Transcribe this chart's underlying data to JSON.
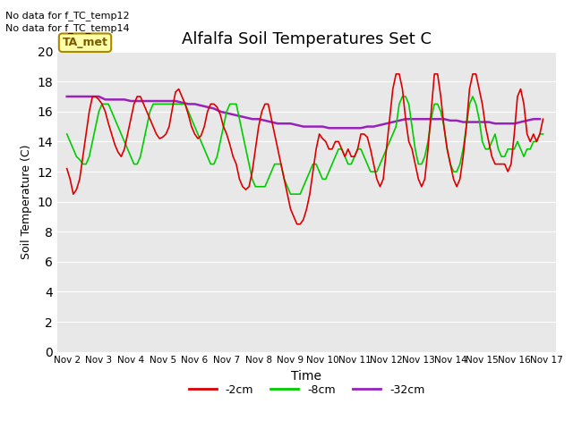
{
  "title": "Alfalfa Soil Temperatures Set C",
  "xlabel": "Time",
  "ylabel": "Soil Temperature (C)",
  "annotation_lines": [
    "No data for f_TC_temp12",
    "No data for f_TC_temp14"
  ],
  "legend_box_label": "TA_met",
  "bg_color": "#e8e8e8",
  "ylim": [
    0,
    20
  ],
  "yticks": [
    0,
    2,
    4,
    6,
    8,
    10,
    12,
    14,
    16,
    18,
    20
  ],
  "x_labels": [
    "Nov 2",
    "Nov 3",
    "Nov 4",
    "Nov 5",
    "Nov 6",
    "Nov 7",
    "Nov 8",
    "Nov 9",
    "Nov 10",
    "Nov 11",
    "Nov 12",
    "Nov 13",
    "Nov 14",
    "Nov 15",
    "Nov 16",
    "Nov 17"
  ],
  "line_colors": {
    "2cm": "#dd0000",
    "8cm": "#00cc00",
    "32cm": "#9922bb"
  },
  "x_2cm": [
    0.0,
    0.1,
    0.2,
    0.3,
    0.4,
    0.5,
    0.6,
    0.7,
    0.8,
    0.9,
    1.0,
    1.1,
    1.2,
    1.3,
    1.4,
    1.5,
    1.6,
    1.7,
    1.8,
    1.9,
    2.0,
    2.1,
    2.2,
    2.3,
    2.4,
    2.5,
    2.6,
    2.7,
    2.8,
    2.9,
    3.0,
    3.1,
    3.2,
    3.3,
    3.4,
    3.5,
    3.6,
    3.7,
    3.8,
    3.9,
    4.0,
    4.1,
    4.2,
    4.3,
    4.4,
    4.5,
    4.6,
    4.7,
    4.8,
    4.9,
    5.0,
    5.1,
    5.2,
    5.3,
    5.4,
    5.5,
    5.6,
    5.7,
    5.8,
    5.9,
    6.0,
    6.1,
    6.2,
    6.3,
    6.4,
    6.5,
    6.6,
    6.7,
    6.8,
    6.9,
    7.0,
    7.1,
    7.2,
    7.3,
    7.4,
    7.5,
    7.6,
    7.7,
    7.8,
    7.9,
    8.0,
    8.1,
    8.2,
    8.3,
    8.4,
    8.5,
    8.6,
    8.7,
    8.8,
    8.9,
    9.0,
    9.1,
    9.2,
    9.3,
    9.4,
    9.5,
    9.6,
    9.7,
    9.8,
    9.9,
    10.0,
    10.1,
    10.2,
    10.3,
    10.4,
    10.5,
    10.6,
    10.7,
    10.8,
    10.9,
    11.0,
    11.1,
    11.2,
    11.3,
    11.4,
    11.5,
    11.6,
    11.7,
    11.8,
    11.9,
    12.0,
    12.1,
    12.2,
    12.3,
    12.4,
    12.5,
    12.6,
    12.7,
    12.8,
    12.9,
    13.0,
    13.1,
    13.2,
    13.3,
    13.4,
    13.5,
    13.6,
    13.7,
    13.8,
    13.9,
    14.0,
    14.1,
    14.2,
    14.3,
    14.4,
    14.5,
    14.6,
    14.7,
    14.8,
    14.9
  ],
  "y_2cm": [
    12.2,
    11.5,
    10.5,
    10.8,
    11.5,
    13.0,
    14.5,
    16.0,
    17.0,
    17.0,
    16.8,
    16.5,
    16.0,
    15.2,
    14.5,
    13.8,
    13.3,
    13.0,
    13.5,
    14.5,
    15.5,
    16.5,
    17.0,
    17.0,
    16.5,
    16.0,
    15.5,
    15.0,
    14.5,
    14.2,
    14.3,
    14.5,
    15.0,
    16.2,
    17.3,
    17.5,
    17.0,
    16.5,
    15.8,
    15.0,
    14.5,
    14.2,
    14.4,
    15.0,
    16.0,
    16.5,
    16.5,
    16.3,
    15.8,
    15.0,
    14.5,
    13.8,
    13.0,
    12.5,
    11.5,
    11.0,
    10.8,
    11.0,
    12.0,
    13.5,
    15.0,
    16.0,
    16.5,
    16.5,
    15.5,
    14.5,
    13.5,
    12.5,
    11.5,
    10.5,
    9.5,
    9.0,
    8.5,
    8.5,
    8.8,
    9.5,
    10.5,
    12.0,
    13.5,
    14.5,
    14.2,
    14.0,
    13.5,
    13.5,
    14.0,
    14.0,
    13.5,
    13.0,
    13.5,
    13.0,
    13.0,
    13.5,
    14.5,
    14.5,
    14.3,
    13.5,
    12.5,
    11.5,
    11.0,
    11.5,
    13.5,
    15.5,
    17.5,
    18.5,
    18.5,
    17.5,
    15.5,
    14.0,
    13.5,
    12.5,
    11.5,
    11.0,
    11.5,
    13.5,
    16.0,
    18.5,
    18.5,
    17.0,
    15.0,
    13.5,
    12.5,
    11.5,
    11.0,
    11.5,
    13.0,
    15.0,
    17.5,
    18.5,
    18.5,
    17.5,
    16.5,
    15.0,
    14.0,
    13.0,
    12.5,
    12.5,
    12.5,
    12.5,
    12.0,
    12.5,
    14.5,
    17.0,
    17.5,
    16.5,
    14.5,
    14.0,
    14.5,
    14.0,
    14.5,
    15.5
  ],
  "y_8cm": [
    14.5,
    14.0,
    13.5,
    13.0,
    12.8,
    12.5,
    12.5,
    13.0,
    14.0,
    15.0,
    16.0,
    16.5,
    16.5,
    16.5,
    16.0,
    15.5,
    15.0,
    14.5,
    14.0,
    13.5,
    13.0,
    12.5,
    12.5,
    13.0,
    14.0,
    15.0,
    16.0,
    16.5,
    16.5,
    16.5,
    16.5,
    16.5,
    16.5,
    16.5,
    16.5,
    16.5,
    16.5,
    16.5,
    16.0,
    15.5,
    15.0,
    14.5,
    14.0,
    13.5,
    13.0,
    12.5,
    12.5,
    13.0,
    14.0,
    15.0,
    16.0,
    16.5,
    16.5,
    16.5,
    15.5,
    14.5,
    13.5,
    12.5,
    11.5,
    11.0,
    11.0,
    11.0,
    11.0,
    11.5,
    12.0,
    12.5,
    12.5,
    12.5,
    11.5,
    11.0,
    10.5,
    10.5,
    10.5,
    10.5,
    11.0,
    11.5,
    12.0,
    12.5,
    12.5,
    12.0,
    11.5,
    11.5,
    12.0,
    12.5,
    13.0,
    13.5,
    13.5,
    13.0,
    12.5,
    12.5,
    13.0,
    13.5,
    13.5,
    13.0,
    12.5,
    12.0,
    12.0,
    12.0,
    12.5,
    13.0,
    13.5,
    14.0,
    14.5,
    15.0,
    16.5,
    17.0,
    17.0,
    16.5,
    15.0,
    13.5,
    12.5,
    12.5,
    13.0,
    14.0,
    15.5,
    16.5,
    16.5,
    16.0,
    15.0,
    13.5,
    12.5,
    12.0,
    12.0,
    12.5,
    13.5,
    15.0,
    16.5,
    17.0,
    16.5,
    15.5,
    14.0,
    13.5,
    13.5,
    14.0,
    14.5,
    13.5,
    13.0,
    13.0,
    13.5,
    13.5,
    13.5,
    14.0,
    13.5,
    13.0,
    13.5,
    13.5,
    14.0,
    14.0,
    14.5,
    14.5
  ],
  "x_32cm": [
    0.0,
    0.2,
    0.4,
    0.6,
    0.8,
    1.0,
    1.2,
    1.4,
    1.6,
    1.8,
    2.0,
    2.2,
    2.4,
    2.6,
    2.8,
    3.0,
    3.2,
    3.4,
    3.6,
    3.8,
    4.0,
    4.2,
    4.4,
    4.6,
    4.8,
    5.0,
    5.2,
    5.4,
    5.6,
    5.8,
    6.0,
    6.2,
    6.4,
    6.6,
    6.8,
    7.0,
    7.2,
    7.4,
    7.6,
    7.8,
    8.0,
    8.2,
    8.4,
    8.6,
    8.8,
    9.0,
    9.2,
    9.4,
    9.6,
    9.8,
    10.0,
    10.2,
    10.4,
    10.6,
    10.8,
    11.0,
    11.2,
    11.4,
    11.6,
    11.8,
    12.0,
    12.2,
    12.4,
    12.6,
    12.8,
    13.0,
    13.2,
    13.4,
    13.6,
    13.8,
    14.0,
    14.2,
    14.4,
    14.6,
    14.8
  ],
  "y_32cm": [
    17.0,
    17.0,
    17.0,
    17.0,
    17.0,
    17.0,
    16.8,
    16.8,
    16.8,
    16.8,
    16.7,
    16.7,
    16.7,
    16.7,
    16.7,
    16.7,
    16.7,
    16.7,
    16.6,
    16.5,
    16.5,
    16.4,
    16.3,
    16.2,
    16.0,
    15.9,
    15.8,
    15.7,
    15.6,
    15.5,
    15.5,
    15.4,
    15.3,
    15.2,
    15.2,
    15.2,
    15.1,
    15.0,
    15.0,
    15.0,
    15.0,
    14.9,
    14.9,
    14.9,
    14.9,
    14.9,
    14.9,
    15.0,
    15.0,
    15.1,
    15.2,
    15.3,
    15.4,
    15.5,
    15.5,
    15.5,
    15.5,
    15.5,
    15.5,
    15.5,
    15.4,
    15.4,
    15.3,
    15.3,
    15.3,
    15.3,
    15.3,
    15.2,
    15.2,
    15.2,
    15.2,
    15.3,
    15.4,
    15.5,
    15.5
  ]
}
